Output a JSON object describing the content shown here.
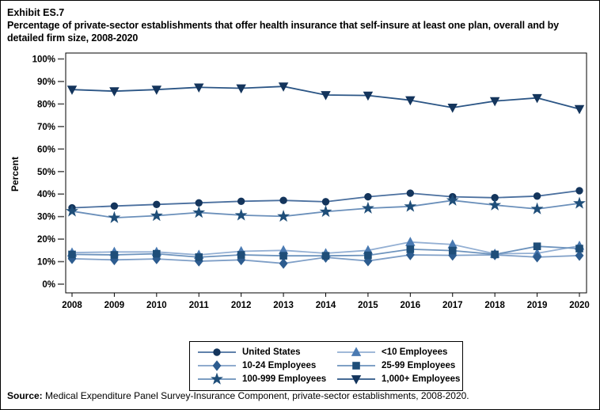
{
  "exhibit_label": "Exhibit ES.7",
  "title": "Percentage of private-sector establishments that offer health insurance that self-insure at least one plan, overall and by detailed firm size, 2008-2020",
  "source": {
    "label": "Source:",
    "text": " Medical Expenditure Panel Survey-Insurance Component, private-sector establishments, 2008-2020."
  },
  "chart_data": {
    "type": "line",
    "title": "Percentage of private-sector establishments that offer health insurance that self-insure at least one plan, overall and by detailed firm size, 2008-2020",
    "xlabel": "",
    "ylabel": "Percent",
    "ylim": [
      0,
      100
    ],
    "ytick_step": 10,
    "ytick_labels": [
      "0%",
      "10%",
      "20%",
      "30%",
      "40%",
      "50%",
      "60%",
      "70%",
      "80%",
      "90%",
      "100%"
    ],
    "grid": false,
    "legend_position": "bottom",
    "x": [
      2008,
      2009,
      2010,
      2011,
      2012,
      2013,
      2014,
      2015,
      2016,
      2017,
      2018,
      2019,
      2020
    ],
    "series": [
      {
        "name": "United States",
        "marker": "circle",
        "line_color": "#4a6f9e",
        "marker_color": "#14355c",
        "values": [
          33.9,
          34.7,
          35.4,
          36.1,
          36.8,
          37.2,
          36.6,
          38.8,
          40.4,
          38.8,
          38.4,
          39.1,
          41.5
        ]
      },
      {
        "name": "<10 Employees",
        "marker": "triangle-up",
        "line_color": "#93afd3",
        "marker_color": "#4a7ab2",
        "values": [
          14.0,
          14.3,
          14.3,
          13.0,
          14.6,
          15.0,
          13.7,
          15.0,
          18.7,
          17.6,
          13.5,
          13.7,
          17.0
        ]
      },
      {
        "name": "10-24 Employees",
        "marker": "diamond",
        "line_color": "#7f9fc7",
        "marker_color": "#2d5c8f",
        "values": [
          11.3,
          10.8,
          11.2,
          10.2,
          10.8,
          9.2,
          11.9,
          10.3,
          13.0,
          12.8,
          13.0,
          12.0,
          12.7
        ]
      },
      {
        "name": "25-99 Employees",
        "marker": "square",
        "line_color": "#6d93bd",
        "marker_color": "#1f4e79",
        "values": [
          13.2,
          13.0,
          13.5,
          12.0,
          13.0,
          12.6,
          12.6,
          12.8,
          15.5,
          14.9,
          13.2,
          16.8,
          15.8
        ]
      },
      {
        "name": "100-999 Employees",
        "marker": "star",
        "line_color": "#6a8fba",
        "marker_color": "#1f4e79",
        "values": [
          32.4,
          29.5,
          30.4,
          31.8,
          30.6,
          30.1,
          32.2,
          33.7,
          34.5,
          37.2,
          35.1,
          33.4,
          35.9
        ]
      },
      {
        "name": "1,000+ Employees",
        "marker": "triangle-down",
        "line_color": "#2b5585",
        "marker_color": "#14355c",
        "values": [
          86.4,
          85.7,
          86.4,
          87.4,
          87.0,
          87.8,
          84.0,
          83.8,
          81.7,
          78.4,
          81.3,
          82.7,
          77.8
        ]
      }
    ]
  }
}
